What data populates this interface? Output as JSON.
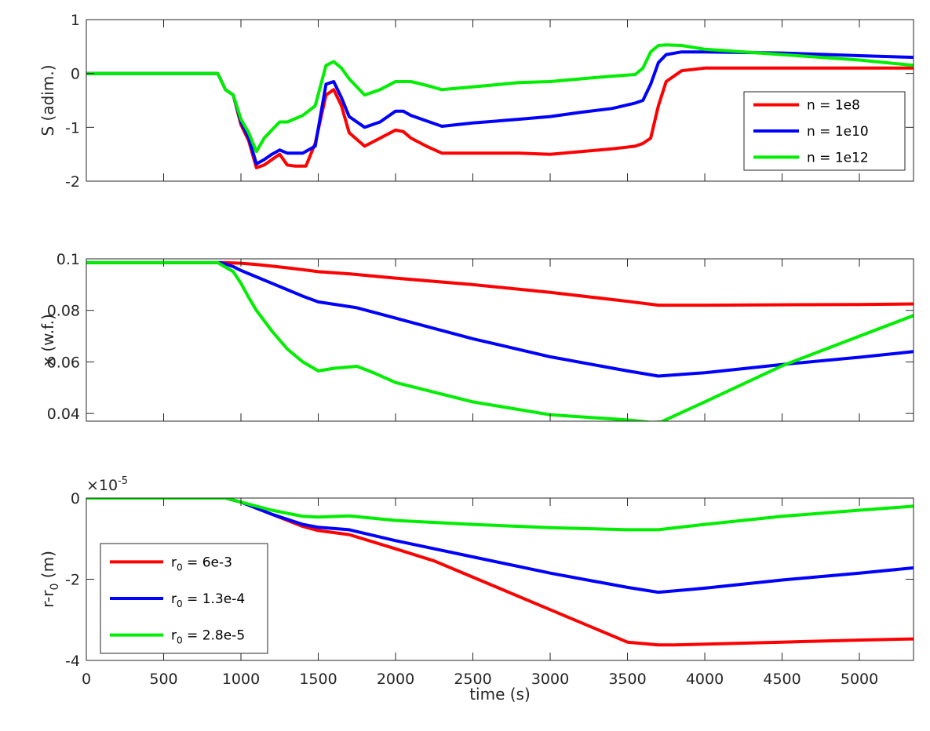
{
  "chart_data": [
    {
      "type": "line",
      "xlabel": "",
      "ylabel": "S (adim.)",
      "xlim": [
        0,
        5350
      ],
      "ylim": [
        -2,
        1
      ],
      "xticks": [
        0,
        500,
        1000,
        1500,
        2000,
        2500,
        3000,
        3500,
        4000,
        4500,
        5000
      ],
      "xtick_labels_visible": false,
      "yticks": [
        -2,
        -1,
        0,
        1
      ],
      "ytick_labels": [
        "-2",
        "-1",
        "0",
        "1"
      ],
      "exponent_label": null,
      "legend": {
        "placement": "right",
        "entries": [
          "n = 1e8",
          "n = 1e10",
          "n = 1e12"
        ]
      },
      "series": [
        {
          "name": "n = 1e8",
          "color": "#ff0000",
          "x": [
            0,
            850,
            900,
            950,
            1000,
            1050,
            1100,
            1150,
            1200,
            1250,
            1300,
            1350,
            1420,
            1480,
            1550,
            1600,
            1650,
            1700,
            1800,
            1900,
            2000,
            2050,
            2100,
            2200,
            2300,
            2500,
            2800,
            3000,
            3200,
            3400,
            3550,
            3600,
            3650,
            3700,
            3750,
            3850,
            4000,
            4500,
            5000,
            5350
          ],
          "y": [
            0,
            0,
            -0.3,
            -0.4,
            -0.95,
            -1.25,
            -1.75,
            -1.7,
            -1.6,
            -1.5,
            -1.7,
            -1.72,
            -1.72,
            -1.3,
            -0.4,
            -0.3,
            -0.6,
            -1.1,
            -1.35,
            -1.2,
            -1.05,
            -1.08,
            -1.2,
            -1.35,
            -1.48,
            -1.48,
            -1.48,
            -1.5,
            -1.45,
            -1.4,
            -1.35,
            -1.3,
            -1.2,
            -0.6,
            -0.15,
            0.05,
            0.1,
            0.1,
            0.1,
            0.1
          ]
        },
        {
          "name": "n = 1e10",
          "color": "#0000ff",
          "x": [
            0,
            850,
            900,
            950,
            1000,
            1050,
            1100,
            1150,
            1200,
            1250,
            1300,
            1400,
            1480,
            1550,
            1600,
            1650,
            1700,
            1800,
            1900,
            2000,
            2050,
            2100,
            2200,
            2300,
            2500,
            2800,
            3000,
            3200,
            3400,
            3550,
            3600,
            3650,
            3700,
            3750,
            3850,
            4000,
            4500,
            5000,
            5350
          ],
          "y": [
            0,
            0,
            -0.3,
            -0.4,
            -0.9,
            -1.2,
            -1.68,
            -1.6,
            -1.5,
            -1.42,
            -1.48,
            -1.48,
            -1.35,
            -0.2,
            -0.15,
            -0.45,
            -0.8,
            -1.0,
            -0.9,
            -0.7,
            -0.7,
            -0.78,
            -0.88,
            -0.98,
            -0.92,
            -0.85,
            -0.8,
            -0.72,
            -0.65,
            -0.55,
            -0.5,
            -0.2,
            0.2,
            0.35,
            0.4,
            0.4,
            0.38,
            0.33,
            0.3
          ]
        },
        {
          "name": "n = 1e12",
          "color": "#00ee00",
          "x": [
            0,
            850,
            900,
            950,
            1000,
            1050,
            1100,
            1150,
            1200,
            1250,
            1300,
            1400,
            1480,
            1550,
            1600,
            1650,
            1700,
            1800,
            1900,
            2000,
            2100,
            2200,
            2300,
            2500,
            2800,
            3000,
            3200,
            3400,
            3550,
            3600,
            3650,
            3700,
            3750,
            3850,
            4000,
            4500,
            5000,
            5350
          ],
          "y": [
            0,
            0,
            -0.3,
            -0.4,
            -0.85,
            -1.1,
            -1.45,
            -1.2,
            -1.05,
            -0.9,
            -0.9,
            -0.78,
            -0.6,
            0.15,
            0.22,
            0.1,
            -0.1,
            -0.4,
            -0.3,
            -0.15,
            -0.15,
            -0.22,
            -0.3,
            -0.25,
            -0.17,
            -0.15,
            -0.1,
            -0.05,
            -0.02,
            0.1,
            0.4,
            0.52,
            0.53,
            0.52,
            0.45,
            0.35,
            0.25,
            0.15
          ]
        }
      ]
    },
    {
      "type": "line",
      "xlabel": "",
      "ylabel": "x (w.f.)",
      "xlim": [
        0,
        5350
      ],
      "ylim": [
        0.037,
        0.1
      ],
      "xticks": [
        0,
        500,
        1000,
        1500,
        2000,
        2500,
        3000,
        3500,
        4000,
        4500,
        5000
      ],
      "xtick_labels_visible": false,
      "yticks": [
        0.04,
        0.06,
        0.08,
        0.1
      ],
      "ytick_labels": [
        "0.04",
        "0.06",
        "0.08",
        "0.1"
      ],
      "exponent_label": null,
      "legend": null,
      "series": [
        {
          "name": "",
          "color": "#ff0000",
          "x": [
            0,
            900,
            1000,
            1100,
            1200,
            1300,
            1400,
            1500,
            1700,
            2000,
            2500,
            3000,
            3500,
            3700,
            4000,
            5000,
            5350
          ],
          "y": [
            0.0985,
            0.0985,
            0.0983,
            0.0978,
            0.0972,
            0.0965,
            0.0958,
            0.095,
            0.0942,
            0.0925,
            0.09,
            0.087,
            0.0835,
            0.082,
            0.082,
            0.0823,
            0.0825
          ]
        },
        {
          "name": "",
          "color": "#0000ff",
          "x": [
            0,
            870,
            950,
            1000,
            1100,
            1200,
            1300,
            1400,
            1500,
            1750,
            2000,
            2500,
            3000,
            3500,
            3700,
            4000,
            4500,
            5000,
            5350
          ],
          "y": [
            0.0985,
            0.0985,
            0.097,
            0.0955,
            0.093,
            0.0905,
            0.088,
            0.0855,
            0.0833,
            0.081,
            0.077,
            0.069,
            0.062,
            0.0565,
            0.0545,
            0.0558,
            0.059,
            0.0618,
            0.064
          ]
        },
        {
          "name": "",
          "color": "#00ee00",
          "x": [
            0,
            850,
            950,
            1000,
            1050,
            1100,
            1200,
            1300,
            1400,
            1500,
            1600,
            1750,
            1850,
            2000,
            2200,
            2500,
            3000,
            3500,
            3660,
            3720,
            4000,
            4500,
            5000,
            5350
          ],
          "y": [
            0.0985,
            0.0985,
            0.095,
            0.0905,
            0.085,
            0.08,
            0.072,
            0.065,
            0.06,
            0.0565,
            0.0575,
            0.0583,
            0.056,
            0.052,
            0.049,
            0.0445,
            0.0395,
            0.0375,
            0.0365,
            0.0368,
            0.0445,
            0.0585,
            0.07,
            0.078
          ]
        }
      ]
    },
    {
      "type": "line",
      "xlabel": "time (s)",
      "ylabel": "r-r",
      "ylabel_subscript": "0",
      "ylabel_suffix": " (m)",
      "xlim": [
        0,
        5350
      ],
      "ylim": [
        -4,
        0
      ],
      "xticks": [
        0,
        500,
        1000,
        1500,
        2000,
        2500,
        3000,
        3500,
        4000,
        4500,
        5000
      ],
      "xtick_labels": [
        "0",
        "500",
        "1000",
        "1500",
        "2000",
        "2500",
        "3000",
        "3500",
        "4000",
        "4500",
        "5000"
      ],
      "xtick_labels_visible": true,
      "yticks": [
        -4,
        -2,
        0
      ],
      "ytick_labels": [
        "-4",
        "-2",
        "0"
      ],
      "exponent_label": {
        "base": "×10",
        "exp": "-5"
      },
      "legend": {
        "placement": "bottom-left",
        "entries": [
          {
            "prefix": "r",
            "subscript": "0",
            "suffix": " = 6e-3"
          },
          {
            "prefix": "r",
            "subscript": "0",
            "suffix": " = 1.3e-4"
          },
          {
            "prefix": "r",
            "subscript": "0",
            "suffix": " = 2.8e-5"
          }
        ]
      },
      "series": [
        {
          "name": "r0 = 6e-3",
          "color": "#ff0000",
          "x": [
            0,
            900,
            1000,
            1200,
            1400,
            1500,
            1700,
            2000,
            2250,
            2500,
            3000,
            3500,
            3700,
            3800,
            4000,
            4500,
            5000,
            5350
          ],
          "y": [
            0,
            0,
            -0.1,
            -0.4,
            -0.7,
            -0.8,
            -0.9,
            -1.25,
            -1.55,
            -1.95,
            -2.75,
            -3.55,
            -3.62,
            -3.62,
            -3.6,
            -3.55,
            -3.5,
            -3.47
          ]
        },
        {
          "name": "r0 = 1.3e-4",
          "color": "#0000ff",
          "x": [
            0,
            900,
            1000,
            1200,
            1400,
            1500,
            1700,
            2000,
            2500,
            3000,
            3500,
            3700,
            4000,
            4500,
            5000,
            5350
          ],
          "y": [
            0,
            0,
            -0.1,
            -0.4,
            -0.65,
            -0.72,
            -0.78,
            -1.05,
            -1.45,
            -1.85,
            -2.2,
            -2.32,
            -2.22,
            -2.02,
            -1.85,
            -1.72
          ]
        },
        {
          "name": "r0 = 2.8e-5",
          "color": "#00ee00",
          "x": [
            0,
            900,
            1000,
            1200,
            1400,
            1500,
            1700,
            2000,
            2500,
            3000,
            3500,
            3700,
            4000,
            4500,
            5000,
            5350
          ],
          "y": [
            0,
            0,
            -0.1,
            -0.3,
            -0.45,
            -0.47,
            -0.44,
            -0.55,
            -0.65,
            -0.73,
            -0.78,
            -0.78,
            -0.65,
            -0.45,
            -0.3,
            -0.2
          ]
        }
      ]
    }
  ]
}
